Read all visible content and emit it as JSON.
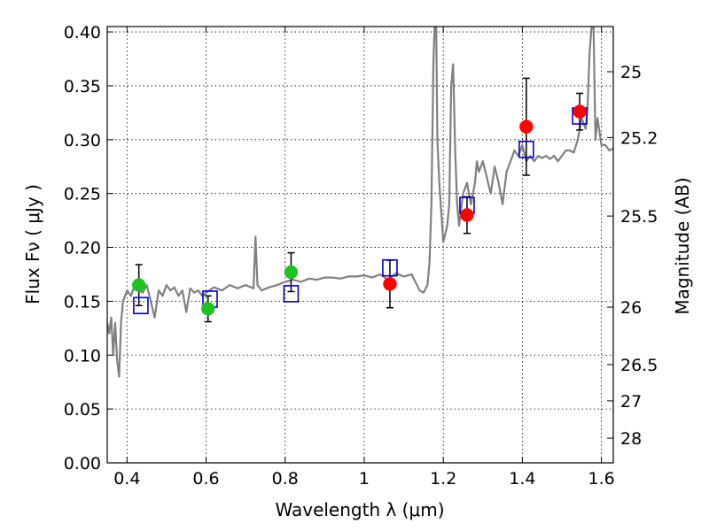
{
  "chart_data": {
    "type": "scatter",
    "xlabel": "Wavelength  λ (μm)",
    "ylabel": "Flux  Fν  ( μJy )",
    "ylabel_right": "Magnitude (AB)",
    "xlim": [
      0.35,
      1.63
    ],
    "ylim": [
      0.0,
      0.405
    ],
    "grid": true,
    "x_ticks": [
      {
        "value": 0.4,
        "label": "0.4"
      },
      {
        "value": 0.6,
        "label": "0.6"
      },
      {
        "value": 0.8,
        "label": "0.8"
      },
      {
        "value": 1.0,
        "label": "1"
      },
      {
        "value": 1.2,
        "label": "1.2"
      },
      {
        "value": 1.4,
        "label": "1.4"
      },
      {
        "value": 1.6,
        "label": "1.6"
      }
    ],
    "y_ticks": [
      {
        "value": 0.0,
        "label": "0.00"
      },
      {
        "value": 0.05,
        "label": "0.05"
      },
      {
        "value": 0.1,
        "label": "0.10"
      },
      {
        "value": 0.15,
        "label": "0.15"
      },
      {
        "value": 0.2,
        "label": "0.20"
      },
      {
        "value": 0.25,
        "label": "0.25"
      },
      {
        "value": 0.3,
        "label": "0.30"
      },
      {
        "value": 0.35,
        "label": "0.35"
      },
      {
        "value": 0.4,
        "label": "0.40"
      }
    ],
    "right_ticks": [
      {
        "value": 25,
        "label": "25"
      },
      {
        "value": 25.2,
        "label": "25.2"
      },
      {
        "value": 25.5,
        "label": "25.5"
      },
      {
        "value": 26,
        "label": "26"
      },
      {
        "value": 26.5,
        "label": "26.5"
      },
      {
        "value": 27,
        "label": "27"
      },
      {
        "value": 28,
        "label": "28"
      }
    ],
    "colors": {
      "spectrum": "#808080",
      "optical_points": "#1fc21f",
      "nir_points": "#ff0000",
      "model_boxes": "#0000cc",
      "error_bars": "#000000"
    },
    "series": [
      {
        "kind": "line",
        "color": "#808080",
        "x": [
          0.35,
          0.355,
          0.36,
          0.365,
          0.37,
          0.375,
          0.38,
          0.385,
          0.39,
          0.4,
          0.41,
          0.42,
          0.43,
          0.44,
          0.45,
          0.46,
          0.47,
          0.48,
          0.49,
          0.5,
          0.51,
          0.52,
          0.53,
          0.54,
          0.55,
          0.56,
          0.57,
          0.58,
          0.59,
          0.6,
          0.62,
          0.64,
          0.66,
          0.68,
          0.7,
          0.72,
          0.725,
          0.73,
          0.735,
          0.74,
          0.76,
          0.78,
          0.8,
          0.82,
          0.84,
          0.86,
          0.88,
          0.9,
          0.92,
          0.94,
          0.96,
          0.98,
          1.0,
          1.02,
          1.04,
          1.06,
          1.08,
          1.1,
          1.12,
          1.14,
          1.15,
          1.16,
          1.165,
          1.17,
          1.175,
          1.178,
          1.18,
          1.182,
          1.185,
          1.19,
          1.2,
          1.21,
          1.215,
          1.22,
          1.225,
          1.23,
          1.235,
          1.24,
          1.25,
          1.26,
          1.27,
          1.28,
          1.285,
          1.29,
          1.3,
          1.31,
          1.32,
          1.33,
          1.34,
          1.35,
          1.36,
          1.37,
          1.38,
          1.39,
          1.4,
          1.41,
          1.42,
          1.43,
          1.44,
          1.45,
          1.46,
          1.47,
          1.48,
          1.49,
          1.5,
          1.51,
          1.52,
          1.53,
          1.54,
          1.55,
          1.56,
          1.565,
          1.57,
          1.575,
          1.58,
          1.585,
          1.59,
          1.6,
          1.61,
          1.62,
          1.63
        ],
        "y": [
          0.13,
          0.12,
          0.135,
          0.1,
          0.13,
          0.095,
          0.08,
          0.13,
          0.15,
          0.16,
          0.155,
          0.165,
          0.16,
          0.158,
          0.165,
          0.15,
          0.135,
          0.16,
          0.155,
          0.165,
          0.16,
          0.163,
          0.155,
          0.16,
          0.14,
          0.162,
          0.158,
          0.16,
          0.155,
          0.158,
          0.163,
          0.16,
          0.165,
          0.162,
          0.165,
          0.162,
          0.21,
          0.165,
          0.163,
          0.16,
          0.163,
          0.165,
          0.168,
          0.17,
          0.168,
          0.171,
          0.17,
          0.172,
          0.172,
          0.171,
          0.173,
          0.173,
          0.174,
          0.172,
          0.175,
          0.17,
          0.176,
          0.173,
          0.175,
          0.16,
          0.158,
          0.165,
          0.185,
          0.24,
          0.37,
          0.405,
          0.405,
          0.405,
          0.3,
          0.26,
          0.205,
          0.22,
          0.24,
          0.35,
          0.37,
          0.29,
          0.24,
          0.22,
          0.25,
          0.26,
          0.24,
          0.26,
          0.28,
          0.27,
          0.28,
          0.265,
          0.25,
          0.275,
          0.26,
          0.24,
          0.27,
          0.28,
          0.29,
          0.285,
          0.295,
          0.28,
          0.285,
          0.28,
          0.285,
          0.283,
          0.285,
          0.282,
          0.285,
          0.28,
          0.285,
          0.29,
          0.29,
          0.288,
          0.3,
          0.32,
          0.31,
          0.33,
          0.38,
          0.405,
          0.405,
          0.3,
          0.32,
          0.295,
          0.295,
          0.29,
          0.292
        ]
      },
      {
        "kind": "points",
        "color": "#1fc21f",
        "x": [
          0.43,
          0.605,
          0.815
        ],
        "y": [
          0.165,
          0.143,
          0.177
        ],
        "yerr": [
          0.019,
          0.012,
          0.018
        ]
      },
      {
        "kind": "points",
        "color": "#ff0000",
        "x": [
          1.065,
          1.26,
          1.41,
          1.545
        ],
        "y": [
          0.166,
          0.23,
          0.312,
          0.326
        ],
        "yerr": [
          0.022,
          0.017,
          0.045,
          0.017
        ]
      },
      {
        "kind": "boxes",
        "color": "#0000cc",
        "x": [
          0.435,
          0.61,
          0.815,
          1.065,
          1.26,
          1.41,
          1.545
        ],
        "y": [
          0.146,
          0.152,
          0.157,
          0.181,
          0.239,
          0.291,
          0.322
        ]
      }
    ]
  }
}
